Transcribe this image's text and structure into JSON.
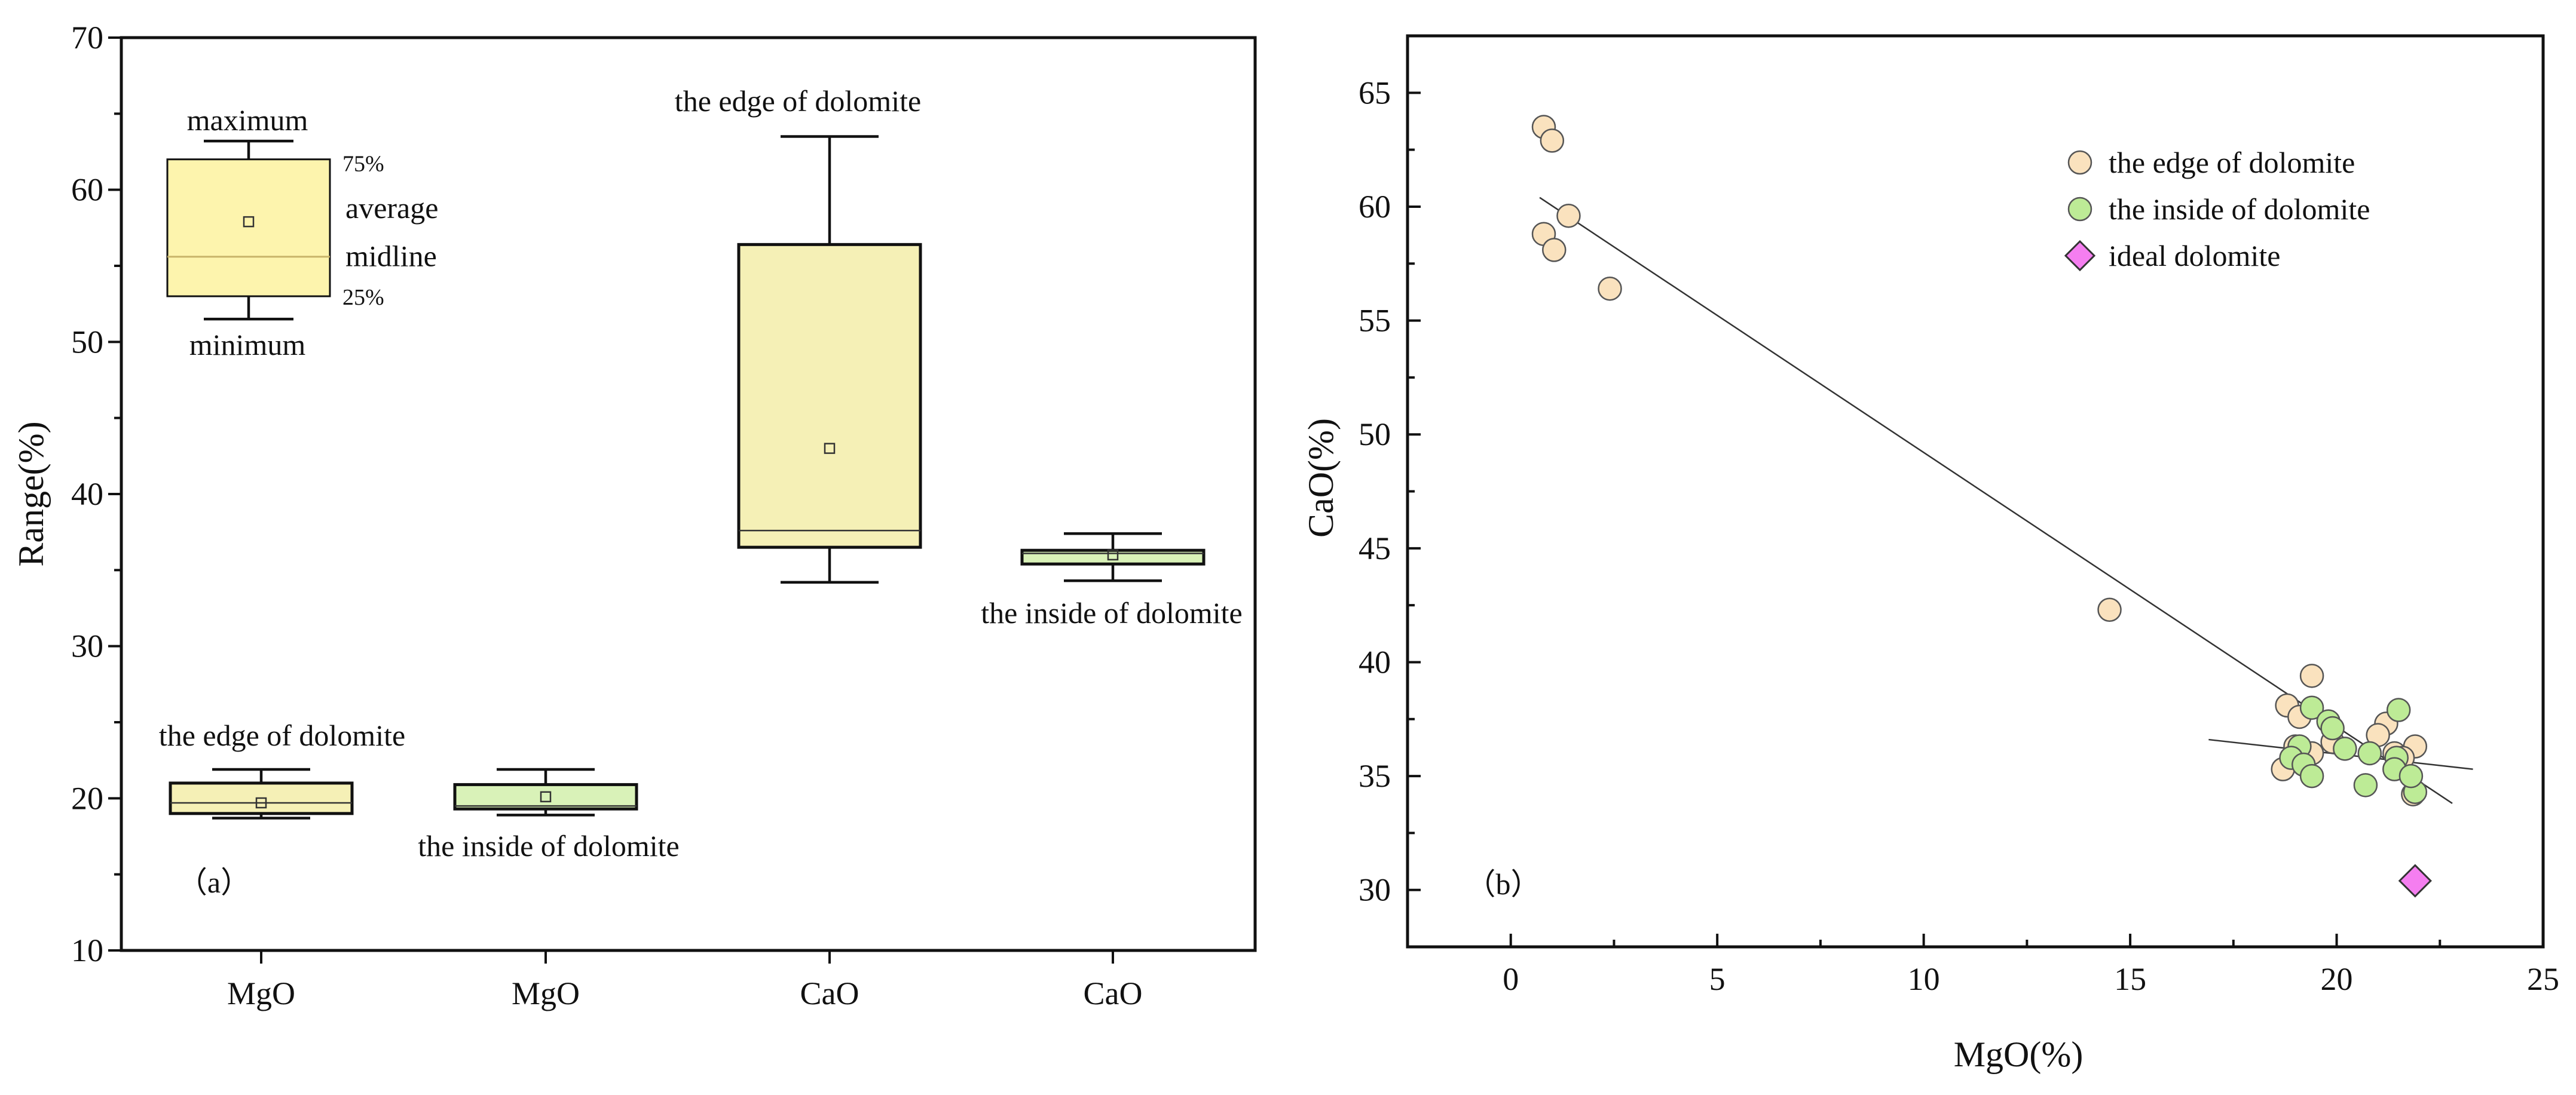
{
  "chart_data": [
    {
      "type": "box",
      "panel_label": "（a）",
      "ylabel": "Range(%)",
      "ylim": [
        10,
        70
      ],
      "yticks": [
        10,
        20,
        30,
        40,
        50,
        60,
        70
      ],
      "categories": [
        "MgO",
        "MgO",
        "CaO",
        "CaO"
      ],
      "boxes": [
        {
          "category": "MgO",
          "group": "the edge of dolomite",
          "min": 18.7,
          "q1": 19.0,
          "median": 19.7,
          "mean": 19.7,
          "q3": 21.0,
          "max": 21.9,
          "color": "#f5f0b6"
        },
        {
          "category": "MgO",
          "group": "the inside of dolomite",
          "min": 18.9,
          "q1": 19.3,
          "median": 19.5,
          "mean": 20.1,
          "q3": 20.9,
          "max": 21.9,
          "color": "#d9f2b8"
        },
        {
          "category": "CaO",
          "group": "the edge of dolomite",
          "min": 34.2,
          "q1": 36.5,
          "median": 37.6,
          "mean": 43.0,
          "q3": 56.4,
          "max": 63.5,
          "color": "#f5f0b6"
        },
        {
          "category": "CaO",
          "group": "the inside of dolomite",
          "min": 34.3,
          "q1": 35.4,
          "median": 36.1,
          "mean": 36.0,
          "q3": 36.3,
          "max": 37.4,
          "color": "#d9f2b8"
        }
      ],
      "annotations": [
        "the edge of dolomite",
        "the inside of dolomite",
        "the edge of dolomite",
        "the inside of dolomite"
      ],
      "legend_box": {
        "min": 51.5,
        "q1": 53.0,
        "median": 55.6,
        "mean": 57.9,
        "q3": 62.0,
        "max": 63.2,
        "labels": {
          "maximum": "maximum",
          "p75": "75%",
          "average": "average",
          "midline": "midline",
          "p25": "25%",
          "minimum": "minimum"
        }
      }
    },
    {
      "type": "scatter",
      "panel_label": "（b）",
      "xlabel": "MgO(%)",
      "ylabel": "CaO(%)",
      "xlim": [
        -2.5,
        25
      ],
      "ylim": [
        27.5,
        67.5
      ],
      "xticks": [
        0,
        5,
        10,
        15,
        20,
        25
      ],
      "yticks": [
        30,
        35,
        40,
        45,
        50,
        55,
        60,
        65
      ],
      "legend_position": "top-right",
      "series": [
        {
          "name": "the edge of dolomite",
          "marker": "circle",
          "color": "#fae2be",
          "x": [
            0.8,
            1.0,
            0.8,
            1.05,
            1.4,
            2.4,
            14.5,
            19.4,
            18.8,
            19.1,
            19.9,
            21.2,
            21.4,
            21.9,
            18.7,
            19.0,
            19.4,
            21.6,
            21.85,
            21.0
          ],
          "y": [
            63.5,
            62.9,
            58.8,
            58.1,
            59.6,
            56.4,
            42.3,
            39.4,
            38.1,
            37.6,
            36.5,
            37.3,
            36.0,
            36.3,
            35.3,
            36.3,
            36.0,
            35.8,
            34.2,
            36.8
          ]
        },
        {
          "name": "the inside of dolomite",
          "marker": "circle",
          "color": "#bdeb96",
          "x": [
            19.4,
            19.8,
            19.9,
            19.1,
            18.9,
            19.2,
            19.4,
            20.2,
            20.7,
            20.8,
            21.45,
            21.5,
            21.4,
            21.9,
            21.8
          ],
          "y": [
            38.0,
            37.4,
            37.1,
            36.3,
            35.8,
            35.5,
            35.0,
            36.2,
            34.6,
            36.0,
            35.8,
            37.9,
            35.3,
            34.3,
            35.0
          ]
        },
        {
          "name": "ideal dolomite",
          "marker": "diamond",
          "color": "#f57ef0",
          "x": [
            21.9
          ],
          "y": [
            30.4
          ]
        }
      ],
      "fit_lines": [
        {
          "label": "overall trend",
          "x1": 0.7,
          "y1": 60.4,
          "x2": 22.8,
          "y2": 33.8
        },
        {
          "label": "inside trend",
          "x1": 16.9,
          "y1": 36.6,
          "x2": 23.3,
          "y2": 35.3
        }
      ]
    }
  ]
}
